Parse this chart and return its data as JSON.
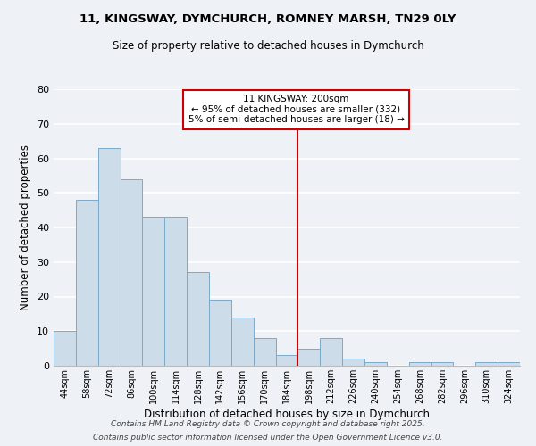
{
  "title": "11, KINGSWAY, DYMCHURCH, ROMNEY MARSH, TN29 0LY",
  "subtitle": "Size of property relative to detached houses in Dymchurch",
  "xlabel": "Distribution of detached houses by size in Dymchurch",
  "ylabel": "Number of detached properties",
  "bar_labels": [
    "44sqm",
    "58sqm",
    "72sqm",
    "86sqm",
    "100sqm",
    "114sqm",
    "128sqm",
    "142sqm",
    "156sqm",
    "170sqm",
    "184sqm",
    "198sqm",
    "212sqm",
    "226sqm",
    "240sqm",
    "254sqm",
    "268sqm",
    "282sqm",
    "296sqm",
    "310sqm",
    "324sqm"
  ],
  "bar_values": [
    10,
    48,
    63,
    54,
    43,
    43,
    27,
    19,
    14,
    8,
    3,
    5,
    8,
    2,
    1,
    0,
    1,
    1,
    0,
    1,
    1
  ],
  "bar_color": "#ccdce8",
  "bar_edge_color": "#7aaac8",
  "vline_color": "#cc0000",
  "vline_index": 11,
  "annotation_title": "11 KINGSWAY: 200sqm",
  "annotation_line1": "← 95% of detached houses are smaller (332)",
  "annotation_line2": "5% of semi-detached houses are larger (18) →",
  "annotation_box_color": "#cc0000",
  "annotation_fill": "#ffffff",
  "ylim": [
    0,
    80
  ],
  "yticks": [
    0,
    10,
    20,
    30,
    40,
    50,
    60,
    70,
    80
  ],
  "bg_color": "#eef2f6",
  "grid_color": "#ffffff",
  "footer1": "Contains HM Land Registry data © Crown copyright and database right 2025.",
  "footer2": "Contains public sector information licensed under the Open Government Licence v3.0."
}
